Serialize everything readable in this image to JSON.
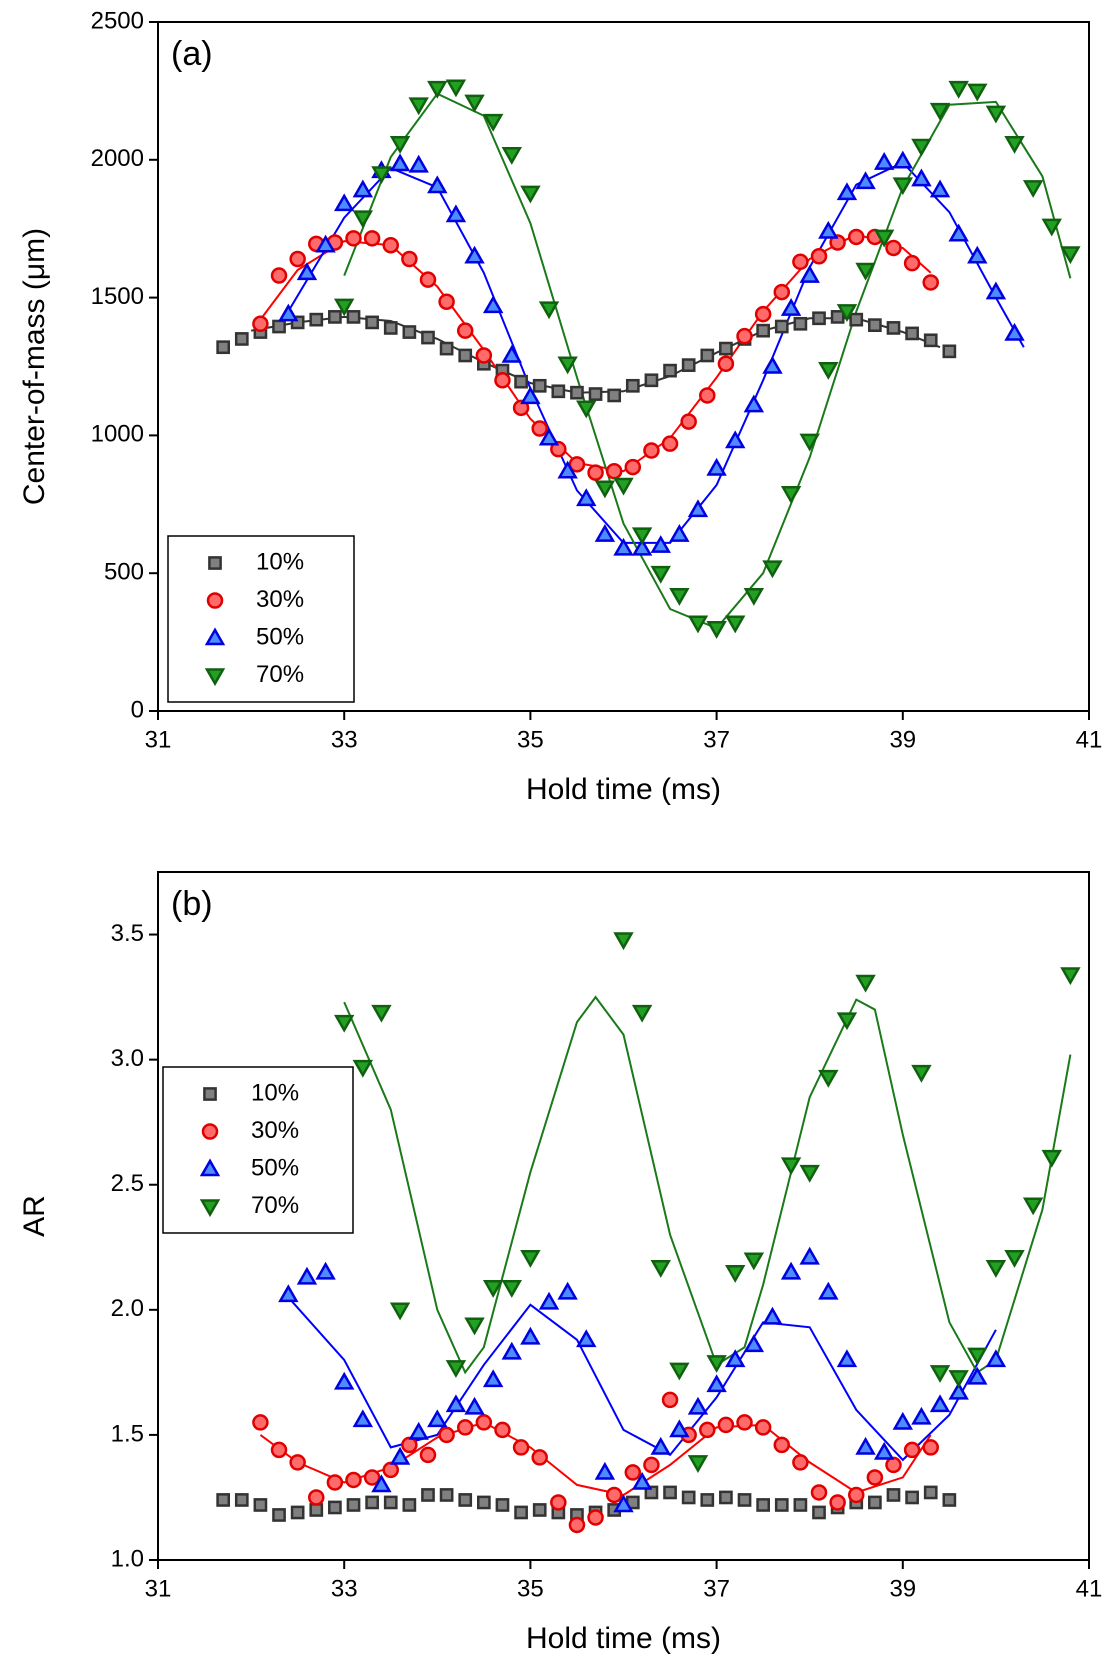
{
  "chart_data": [
    {
      "type": "scatter",
      "panel_label": "(a)",
      "xlabel": "Hold time (ms)",
      "ylabel": "Center-of-mass (μm)",
      "xlim": [
        31,
        41
      ],
      "xticks": [
        31,
        33,
        35,
        37,
        39,
        41
      ],
      "ylim": [
        0,
        2500
      ],
      "yticks": [
        0,
        500,
        1000,
        1500,
        2000,
        2500
      ],
      "legend": "lower left",
      "series": [
        {
          "name": "10%",
          "marker": "square",
          "color": "#808080",
          "edge": "#333333",
          "x": [
            31.7,
            31.9,
            32.1,
            32.3,
            32.5,
            32.7,
            32.9,
            33.1,
            33.3,
            33.5,
            33.7,
            33.9,
            34.1,
            34.3,
            34.5,
            34.7,
            34.9,
            35.1,
            35.3,
            35.5,
            35.7,
            35.9,
            36.1,
            36.3,
            36.5,
            36.7,
            36.9,
            37.1,
            37.3,
            37.5,
            37.7,
            37.9,
            38.1,
            38.3,
            38.5,
            38.7,
            38.9,
            39.1,
            39.3,
            39.5
          ],
          "values": [
            1320,
            1350,
            1375,
            1395,
            1410,
            1420,
            1430,
            1430,
            1410,
            1390,
            1375,
            1355,
            1315,
            1290,
            1260,
            1235,
            1195,
            1180,
            1160,
            1155,
            1150,
            1145,
            1180,
            1200,
            1235,
            1255,
            1290,
            1315,
            1350,
            1380,
            1395,
            1405,
            1425,
            1430,
            1420,
            1400,
            1390,
            1370,
            1345,
            1305
          ],
          "fit": {
            "color": "#333333",
            "x": [
              32,
              32.5,
              33,
              33.5,
              34,
              34.5,
              35,
              35.5,
              36,
              36.5,
              37,
              37.5,
              38,
              38.5,
              39,
              39.4
            ],
            "values": [
              1380,
              1410,
              1430,
              1415,
              1350,
              1265,
              1190,
              1155,
              1160,
              1215,
              1300,
              1380,
              1425,
              1425,
              1375,
              1320
            ]
          }
        },
        {
          "name": "30%",
          "marker": "circle",
          "color": "#ff6a6a",
          "edge": "#e00000",
          "x": [
            32.1,
            32.3,
            32.5,
            32.7,
            32.9,
            33.1,
            33.3,
            33.5,
            33.7,
            33.9,
            34.1,
            34.3,
            34.5,
            34.7,
            34.9,
            35.1,
            35.3,
            35.5,
            35.7,
            35.9,
            36.1,
            36.3,
            36.5,
            36.7,
            36.9,
            37.1,
            37.3,
            37.5,
            37.7,
            37.9,
            38.1,
            38.3,
            38.5,
            38.7,
            38.9,
            39.1,
            39.3
          ],
          "values": [
            1405,
            1580,
            1640,
            1695,
            1700,
            1715,
            1715,
            1690,
            1640,
            1565,
            1485,
            1380,
            1290,
            1200,
            1100,
            1025,
            950,
            895,
            865,
            870,
            885,
            945,
            970,
            1050,
            1145,
            1260,
            1360,
            1440,
            1520,
            1630,
            1650,
            1700,
            1720,
            1720,
            1680,
            1625,
            1555
          ],
          "fit": {
            "color": "#ff0000",
            "x": [
              32.1,
              32.5,
              33,
              33.5,
              34,
              34.5,
              35,
              35.5,
              36,
              36.5,
              37,
              37.5,
              38,
              38.5,
              39,
              39.3
            ],
            "values": [
              1420,
              1600,
              1705,
              1690,
              1540,
              1310,
              1060,
              900,
              870,
              990,
              1210,
              1450,
              1640,
              1730,
              1680,
              1590
            ]
          }
        },
        {
          "name": "50%",
          "marker": "triangle",
          "color": "#4d8cff",
          "edge": "#0000e0",
          "x": [
            32.4,
            32.6,
            32.8,
            33.0,
            33.2,
            33.4,
            33.6,
            33.8,
            34.0,
            34.2,
            34.4,
            34.6,
            34.8,
            35.0,
            35.2,
            35.4,
            35.6,
            35.8,
            36.0,
            36.2,
            36.4,
            36.6,
            36.8,
            37.0,
            37.2,
            37.4,
            37.6,
            37.8,
            38.0,
            38.2,
            38.4,
            38.6,
            38.8,
            39.0,
            39.2,
            39.4,
            39.6,
            39.8,
            40.0,
            40.2
          ],
          "values": [
            1440,
            1590,
            1690,
            1840,
            1890,
            1960,
            1985,
            1980,
            1905,
            1800,
            1650,
            1470,
            1290,
            1140,
            990,
            870,
            770,
            640,
            590,
            590,
            600,
            640,
            730,
            880,
            980,
            1110,
            1250,
            1460,
            1580,
            1740,
            1880,
            1920,
            1990,
            1995,
            1930,
            1890,
            1730,
            1650,
            1520,
            1370
          ],
          "fit": {
            "color": "#0000ff",
            "x": [
              32.4,
              33,
              33.5,
              34,
              34.5,
              35,
              35.5,
              36,
              36.5,
              37,
              37.5,
              38,
              38.5,
              39,
              39.5,
              40,
              40.3
            ],
            "values": [
              1450,
              1790,
              1970,
              1900,
              1590,
              1170,
              800,
              610,
              610,
              820,
              1200,
              1610,
              1910,
              1990,
              1810,
              1500,
              1320
            ]
          }
        },
        {
          "name": "70%",
          "marker": "triangle-down",
          "color": "#22a022",
          "edge": "#106010",
          "x": [
            33.0,
            33.2,
            33.4,
            33.6,
            33.8,
            34.0,
            34.2,
            34.4,
            34.6,
            34.8,
            35.0,
            35.2,
            35.4,
            35.6,
            35.8,
            36.0,
            36.2,
            36.4,
            36.6,
            36.8,
            37.0,
            37.2,
            37.4,
            37.6,
            37.8,
            38.0,
            38.2,
            38.4,
            38.6,
            38.8,
            39.0,
            39.2,
            39.4,
            39.6,
            39.8,
            40.0,
            40.2,
            40.4,
            40.6,
            40.8
          ],
          "values": [
            1470,
            1790,
            1950,
            2060,
            2200,
            2260,
            2265,
            2210,
            2140,
            2020,
            1880,
            1460,
            1260,
            1100,
            810,
            820,
            640,
            500,
            420,
            320,
            300,
            320,
            420,
            520,
            790,
            980,
            1240,
            1450,
            1600,
            1720,
            1910,
            2050,
            2180,
            2260,
            2250,
            2170,
            2060,
            1900,
            1760,
            1660
          ],
          "fit": {
            "color": "#1a7a1a",
            "x": [
              33,
              33.5,
              34,
              34.5,
              35,
              35.5,
              36,
              36.5,
              37,
              37.5,
              38,
              38.5,
              39,
              39.5,
              40,
              40.5,
              40.8
            ],
            "values": [
              1580,
              2010,
              2240,
              2160,
              1770,
              1210,
              680,
              370,
              300,
              500,
              920,
              1450,
              1900,
              2200,
              2210,
              1940,
              1570
            ]
          }
        }
      ]
    },
    {
      "type": "scatter",
      "panel_label": "(b)",
      "xlabel": "Hold time (ms)",
      "ylabel": "AR",
      "xlim": [
        31,
        41
      ],
      "xticks": [
        31,
        33,
        35,
        37,
        39,
        41
      ],
      "ylim": [
        1.0,
        3.75
      ],
      "yticks": [
        {
          "value": 1,
          "label": "1.0"
        },
        1.5,
        {
          "value": 2,
          "label": "2.0"
        },
        2.5,
        {
          "value": 3,
          "label": "3.0"
        },
        3.5
      ],
      "legend": "upper left",
      "series": [
        {
          "name": "10%",
          "marker": "square",
          "color": "#808080",
          "edge": "#333333",
          "x": [
            31.7,
            31.9,
            32.1,
            32.3,
            32.5,
            32.7,
            32.9,
            33.1,
            33.3,
            33.5,
            33.7,
            33.9,
            34.1,
            34.3,
            34.5,
            34.7,
            34.9,
            35.1,
            35.3,
            35.5,
            35.7,
            35.9,
            36.1,
            36.3,
            36.5,
            36.7,
            36.9,
            37.1,
            37.3,
            37.5,
            37.7,
            37.9,
            38.1,
            38.3,
            38.5,
            38.7,
            38.9,
            39.1,
            39.3,
            39.5
          ],
          "values": [
            1.24,
            1.24,
            1.22,
            1.18,
            1.19,
            1.2,
            1.21,
            1.22,
            1.23,
            1.23,
            1.22,
            1.26,
            1.26,
            1.24,
            1.23,
            1.22,
            1.19,
            1.2,
            1.19,
            1.18,
            1.19,
            1.2,
            1.23,
            1.27,
            1.27,
            1.25,
            1.24,
            1.25,
            1.24,
            1.22,
            1.22,
            1.22,
            1.19,
            1.21,
            1.23,
            1.23,
            1.26,
            1.25,
            1.27,
            1.24
          ]
        },
        {
          "name": "30%",
          "marker": "circle",
          "color": "#ff6a6a",
          "edge": "#e00000",
          "x": [
            32.1,
            32.3,
            32.5,
            32.7,
            32.9,
            33.1,
            33.3,
            33.5,
            33.7,
            33.9,
            34.1,
            34.3,
            34.5,
            34.7,
            34.9,
            35.1,
            35.3,
            35.5,
            35.7,
            35.9,
            36.1,
            36.3,
            36.5,
            36.7,
            36.9,
            37.1,
            37.3,
            37.5,
            37.7,
            37.9,
            38.1,
            38.3,
            38.5,
            38.7,
            38.9,
            39.1,
            39.3
          ],
          "values": [
            1.55,
            1.44,
            1.39,
            1.25,
            1.31,
            1.32,
            1.33,
            1.36,
            1.46,
            1.42,
            1.5,
            1.53,
            1.55,
            1.52,
            1.45,
            1.41,
            1.23,
            1.14,
            1.17,
            1.26,
            1.35,
            1.38,
            1.64,
            1.5,
            1.52,
            1.54,
            1.55,
            1.53,
            1.46,
            1.39,
            1.27,
            1.23,
            1.26,
            1.33,
            1.38,
            1.44,
            1.45
          ],
          "fit": {
            "color": "#ff0000",
            "x": [
              32.1,
              32.5,
              33,
              33.5,
              34,
              34.5,
              35,
              35.5,
              36,
              36.5,
              37,
              37.5,
              38,
              38.5,
              39,
              39.3
            ],
            "values": [
              1.5,
              1.39,
              1.31,
              1.37,
              1.49,
              1.55,
              1.45,
              1.3,
              1.26,
              1.38,
              1.53,
              1.54,
              1.39,
              1.27,
              1.33,
              1.5
            ]
          }
        },
        {
          "name": "50%",
          "marker": "triangle",
          "color": "#4d8cff",
          "edge": "#0000e0",
          "x": [
            32.4,
            32.6,
            32.8,
            33.0,
            33.2,
            33.4,
            33.6,
            33.8,
            34.0,
            34.2,
            34.4,
            34.6,
            34.8,
            35.0,
            35.2,
            35.4,
            35.6,
            35.8,
            36.0,
            36.2,
            36.4,
            36.6,
            36.8,
            37.0,
            37.2,
            37.4,
            37.6,
            37.8,
            38.0,
            38.2,
            38.4,
            38.6,
            38.8,
            39.0,
            39.2,
            39.4,
            39.6,
            39.8,
            40.0
          ],
          "values": [
            2.06,
            2.13,
            2.15,
            1.71,
            1.56,
            1.3,
            1.41,
            1.51,
            1.56,
            1.62,
            1.61,
            1.72,
            1.83,
            1.89,
            2.03,
            2.07,
            1.88,
            1.35,
            1.22,
            1.31,
            1.45,
            1.52,
            1.61,
            1.7,
            1.8,
            1.86,
            1.97,
            2.15,
            2.21,
            2.07,
            1.8,
            1.45,
            1.43,
            1.55,
            1.57,
            1.62,
            1.67,
            1.73,
            1.8
          ],
          "fit": {
            "color": "#0000ff",
            "x": [
              32.4,
              33,
              33.5,
              34,
              34.5,
              35,
              35.5,
              36,
              36.5,
              37,
              37.5,
              38,
              38.5,
              39,
              39.5,
              40
            ],
            "values": [
              2.05,
              1.8,
              1.45,
              1.5,
              1.78,
              2.02,
              1.88,
              1.52,
              1.42,
              1.65,
              1.95,
              1.93,
              1.6,
              1.4,
              1.58,
              1.92
            ]
          }
        },
        {
          "name": "70%",
          "marker": "triangle-down",
          "color": "#22a022",
          "edge": "#106010",
          "x": [
            33.0,
            33.2,
            33.4,
            33.6,
            34.2,
            34.4,
            34.6,
            34.8,
            35.0,
            36.0,
            36.2,
            36.4,
            36.6,
            36.8,
            37.0,
            37.2,
            37.4,
            37.8,
            38.0,
            38.2,
            38.4,
            38.6,
            39.2,
            39.4,
            39.6,
            39.8,
            40.0,
            40.2,
            40.4,
            40.6,
            40.8
          ],
          "values": [
            3.15,
            2.97,
            3.19,
            2.0,
            1.77,
            1.94,
            2.09,
            2.09,
            2.21,
            3.48,
            3.19,
            2.17,
            1.76,
            1.39,
            1.79,
            2.15,
            2.2,
            2.58,
            2.55,
            2.93,
            3.16,
            3.31,
            2.95,
            1.75,
            1.73,
            1.82,
            2.17,
            2.21,
            2.42,
            2.61,
            3.34
          ],
          "fit": {
            "color": "#1a7a1a",
            "x": [
              33,
              33.5,
              34,
              34.3,
              34.5,
              35,
              35.5,
              35.7,
              36,
              36.5,
              37,
              37.3,
              37.5,
              38,
              38.5,
              38.7,
              39,
              39.5,
              39.8,
              40,
              40.5,
              40.8
            ],
            "values": [
              3.23,
              2.8,
              2.0,
              1.75,
              1.85,
              2.55,
              3.15,
              3.25,
              3.1,
              2.3,
              1.78,
              1.85,
              2.1,
              2.85,
              3.24,
              3.2,
              2.7,
              1.95,
              1.75,
              1.8,
              2.4,
              3.02
            ]
          }
        }
      ]
    }
  ]
}
